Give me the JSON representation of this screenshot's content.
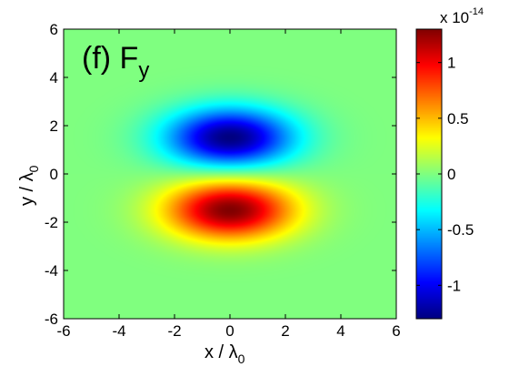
{
  "chart_data": {
    "type": "heatmap",
    "title": "(f) F",
    "title_subscript": "y",
    "xlabel": "x / λ",
    "xlabel_subscript": "0",
    "ylabel": "y / λ",
    "ylabel_subscript": "0",
    "xlim": [
      -6,
      6
    ],
    "ylim": [
      -6,
      6
    ],
    "xticks": [
      "-6",
      "-4",
      "-2",
      "0",
      "2",
      "4",
      "6"
    ],
    "yticks": [
      "-6",
      "-4",
      "-2",
      "0",
      "2",
      "4",
      "6"
    ],
    "colormap": "jet",
    "field": {
      "description_of_shape": "antisymmetric lobe pair",
      "positive_lobe_center": [
        0,
        -1.5
      ],
      "negative_lobe_center": [
        0,
        1.5
      ],
      "peak_value": 1.3,
      "sigma_x": 1.6,
      "sigma_y": 0.85
    },
    "colorbar": {
      "min": -1.3,
      "max": 1.3,
      "tick_values": [
        -1,
        -0.5,
        0,
        0.5,
        1
      ],
      "tick_labels": [
        "-1",
        "-0.5",
        "0",
        "0.5",
        "1"
      ],
      "multiplier_label": "x 10",
      "multiplier_exponent": "-14"
    },
    "grid": false
  }
}
